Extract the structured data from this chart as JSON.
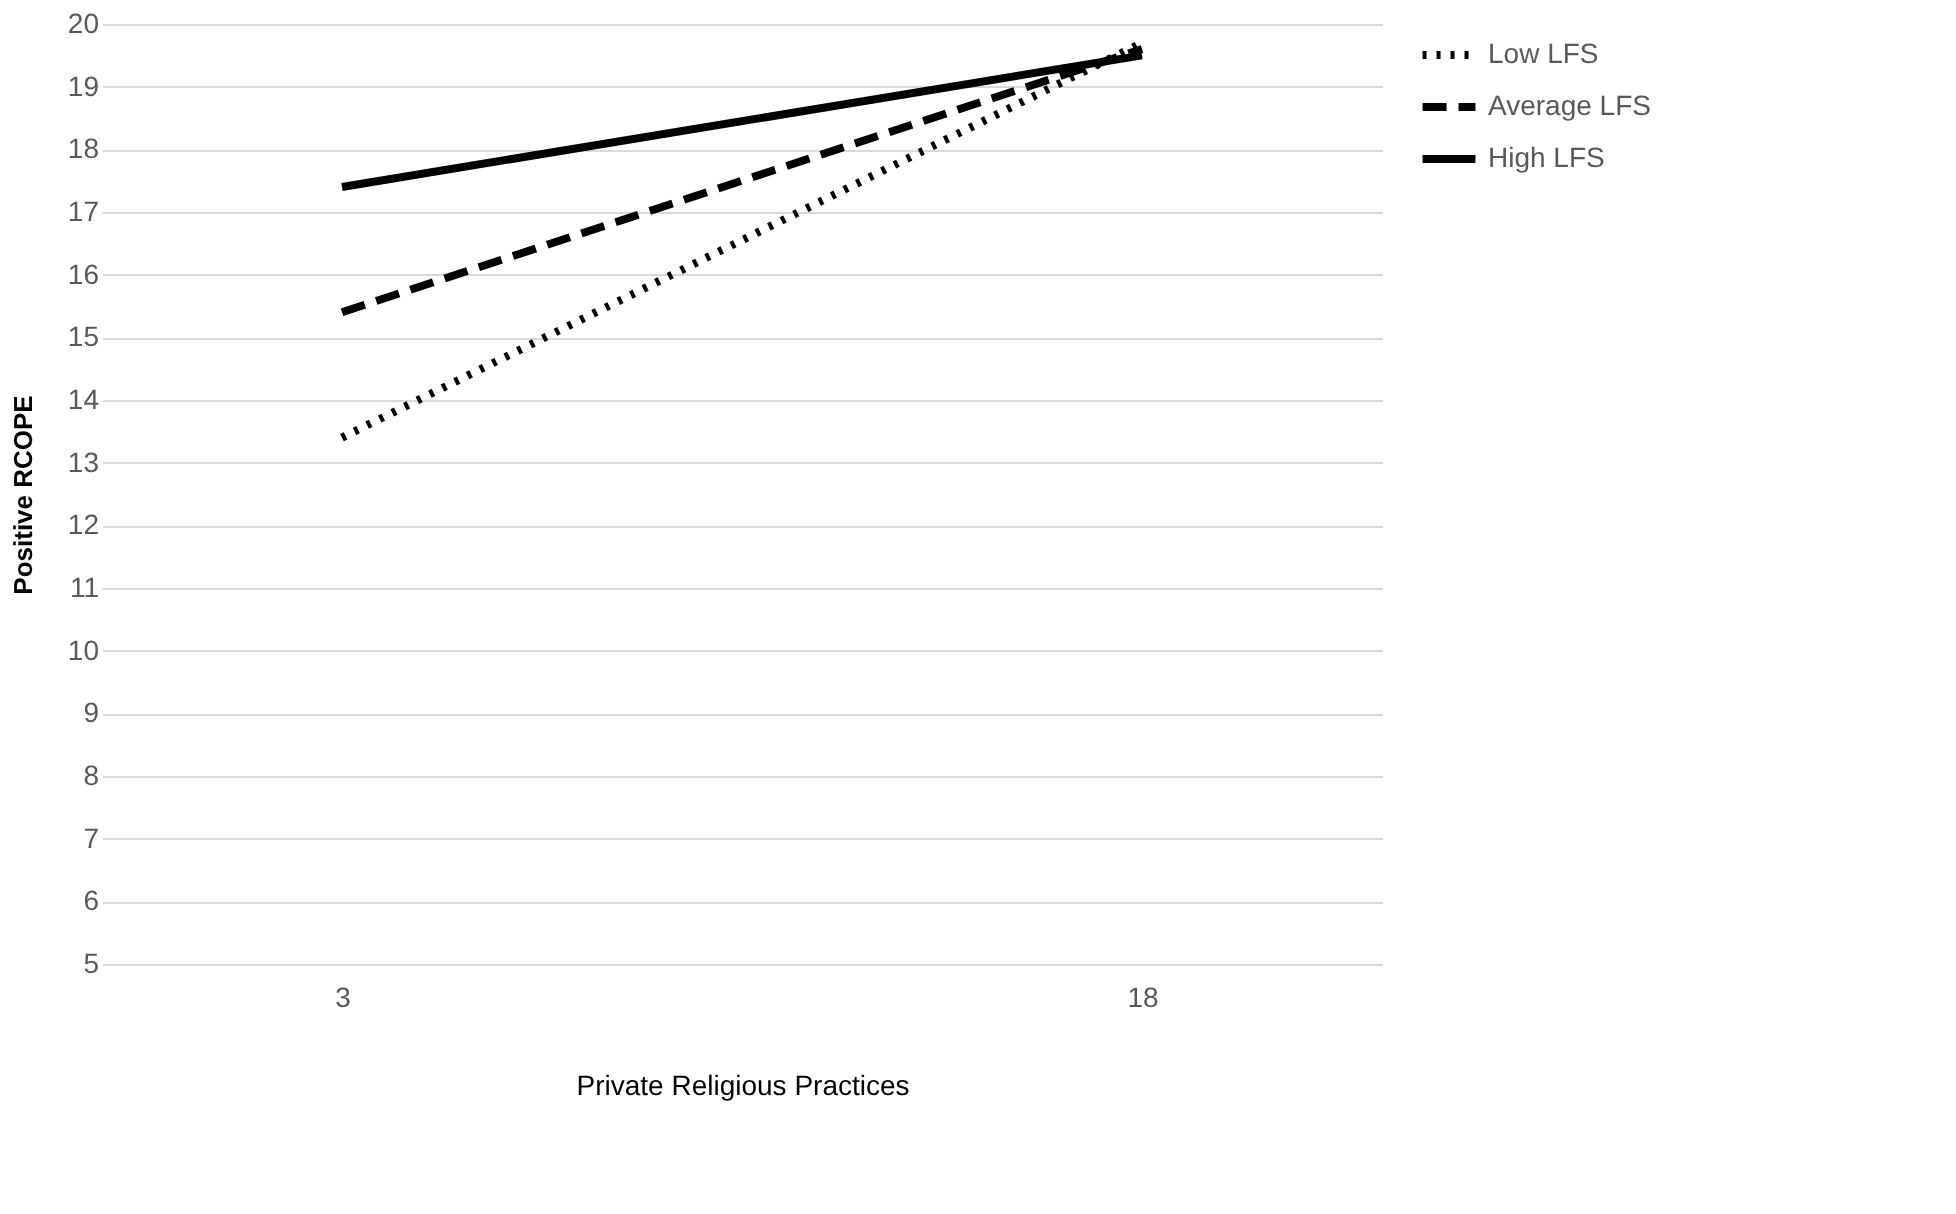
{
  "chart_data": {
    "type": "line",
    "xlabel": "Private Religious Practices",
    "ylabel": "Positive RCOPE",
    "categories": [
      "3",
      "18"
    ],
    "series": [
      {
        "name": "Low LFS",
        "color": "#000000",
        "line_style": "dotted",
        "values": [
          13.4,
          19.7
        ]
      },
      {
        "name": "Average LFS",
        "color": "#000000",
        "line_style": "dashed",
        "values": [
          15.4,
          19.6
        ]
      },
      {
        "name": "High LFS",
        "color": "#000000",
        "line_style": "solid",
        "values": [
          17.4,
          19.5
        ]
      }
    ],
    "ylim": [
      5,
      20
    ],
    "yticks": [
      5,
      6,
      7,
      8,
      9,
      10,
      11,
      12,
      13,
      14,
      15,
      16,
      17,
      18,
      19,
      20
    ],
    "grid": "y",
    "legend": "right",
    "marker": "none"
  }
}
